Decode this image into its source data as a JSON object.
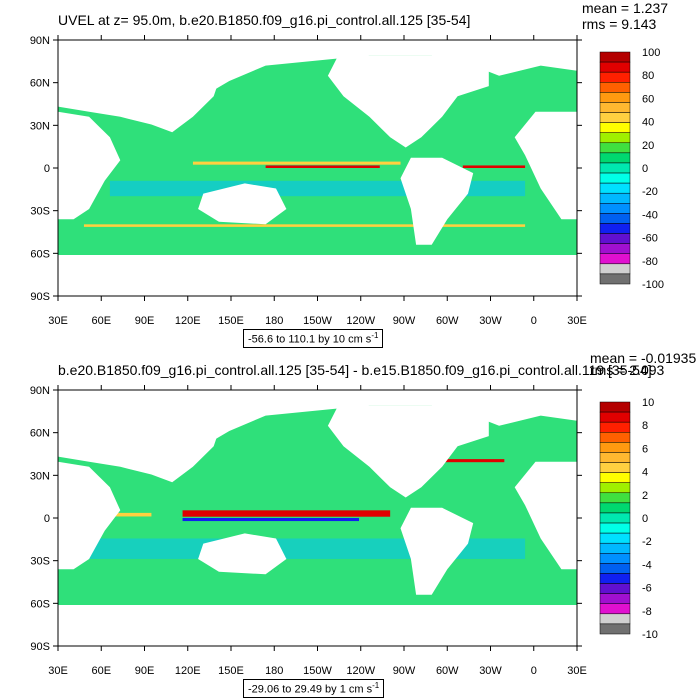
{
  "panels": [
    {
      "id": "panel-1",
      "title": "UVEL at z=  95.0m, b.e20.B1850.f09_g16.pi_control.all.125 [35-54]",
      "mean_label": "mean = 1.237",
      "rms_label": "rms = 9.143",
      "range_label": "-56.6 to 110.1 by 10 cm s",
      "range_unit_exp": "-1",
      "colorbar_labels": [
        "100",
        "80",
        "60",
        "40",
        "20",
        "0",
        "-20",
        "-40",
        "-60",
        "-80",
        "-100"
      ]
    },
    {
      "id": "panel-2",
      "title": "b.e20.B1850.f09_g16.pi_control.all.125 [35-54] - b.e15.B1850.f09_g16.pi_control.all.119 [35-54]",
      "mean_label": "mean = -0.01935",
      "rms_label": "rms = 2.093",
      "range_label": "-29.06 to 29.49 by 1 cm s",
      "range_unit_exp": "-1",
      "colorbar_labels": [
        "10",
        "8",
        "6",
        "4",
        "2",
        "0",
        "-2",
        "-4",
        "-6",
        "-8",
        "-10"
      ]
    }
  ],
  "axes": {
    "lat_labels": [
      "90N",
      "60N",
      "30N",
      "0",
      "30S",
      "60S",
      "90S"
    ],
    "lon_labels": [
      "30E",
      "60E",
      "90E",
      "120E",
      "150E",
      "180",
      "150W",
      "120W",
      "90W",
      "60W",
      "30W",
      "0",
      "30E"
    ]
  },
  "colorbar_colors": [
    "#b40000",
    "#e00000",
    "#ff2000",
    "#ff6000",
    "#ff9a10",
    "#ffb830",
    "#ffd040",
    "#ffff00",
    "#a0f000",
    "#40e040",
    "#00d870",
    "#00e8b0",
    "#00ffe8",
    "#00e0ff",
    "#00b8ff",
    "#0090ff",
    "#0060f0",
    "#1020f0",
    "#6010d0",
    "#a010d0",
    "#e010d0",
    "#d0d0d0",
    "#707070"
  ],
  "colors": {
    "ocean": "#2fe07a",
    "land": "#ffffff",
    "warm": "#ffd040",
    "hot": "#e00000",
    "cold": "#00c0ff",
    "deep": "#1020f0"
  }
}
